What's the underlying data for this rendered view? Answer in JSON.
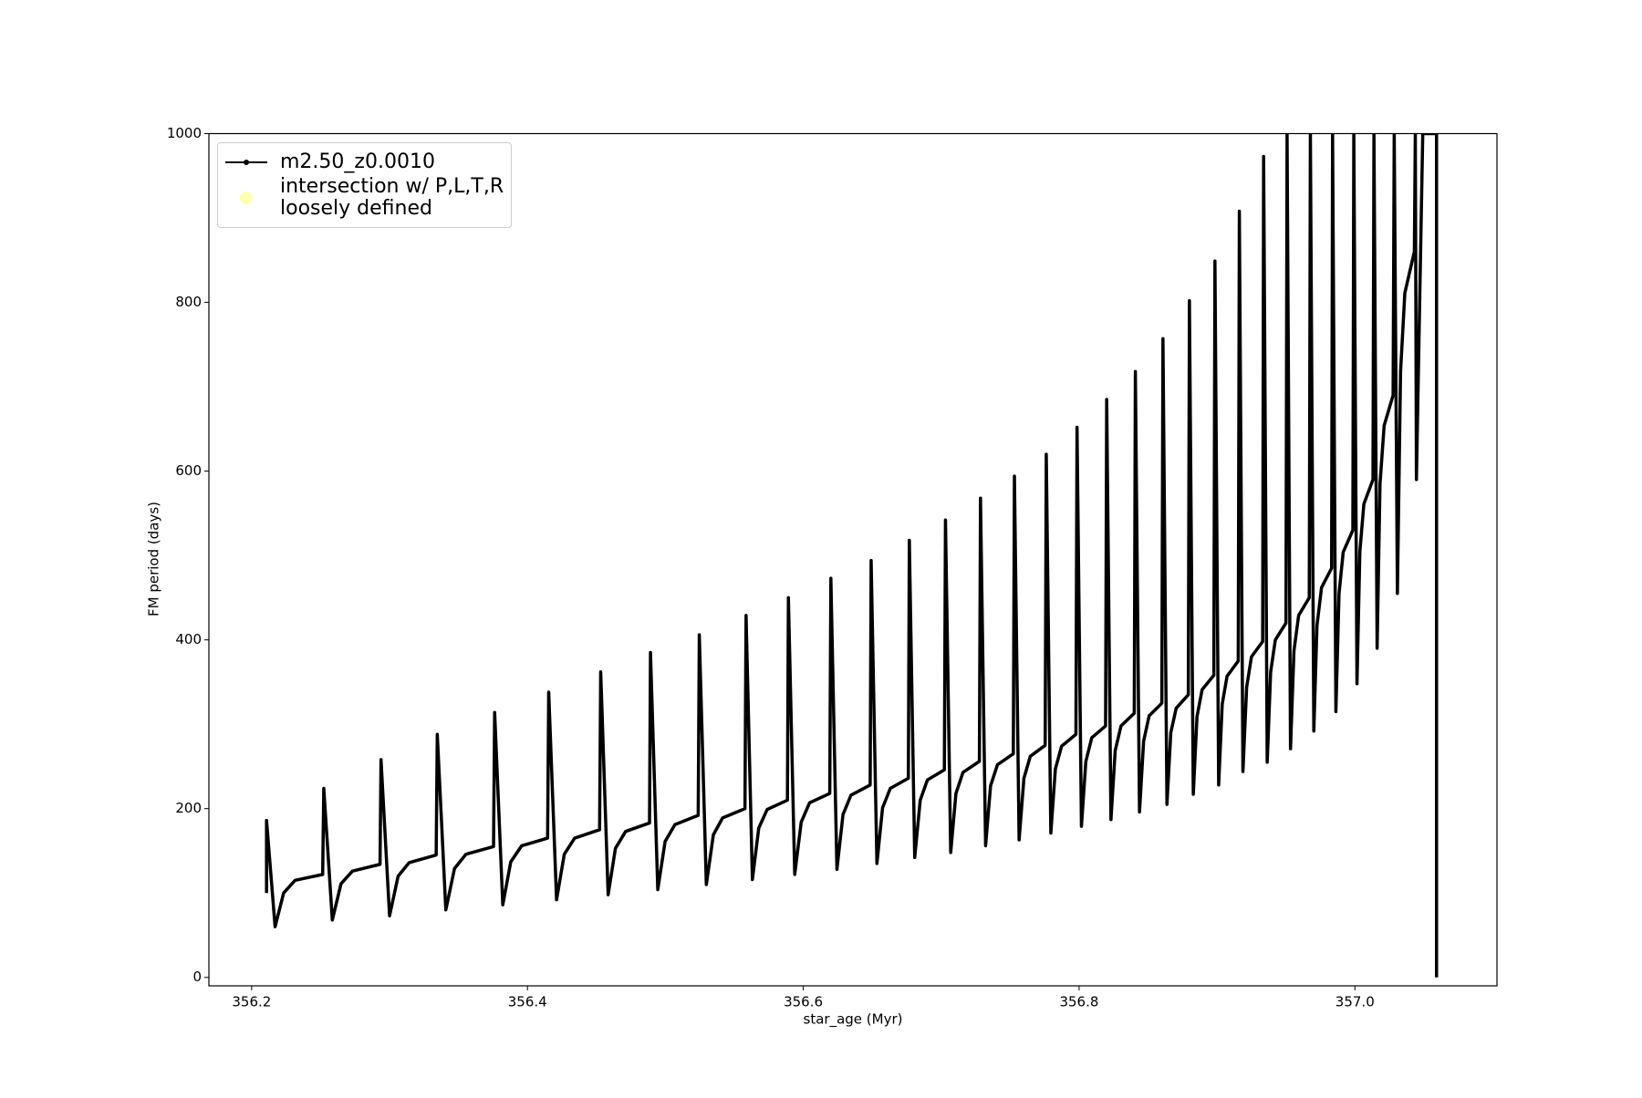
{
  "chart_data": {
    "type": "line",
    "xlabel": "star_age (Myr)",
    "ylabel": "FM period (days)",
    "xlim": [
      356.169,
      357.103
    ],
    "ylim": [
      -10,
      1000
    ],
    "xticks": [
      356.2,
      356.4,
      356.6,
      356.8,
      {
        "value": 357.0,
        "label": "357.0"
      }
    ],
    "yticks": [
      0,
      200,
      400,
      600,
      800,
      1000
    ],
    "legend": "upper left",
    "series": [
      {
        "name": "m2.50_z0.0010",
        "color": "#000000",
        "x": [
          356.2108,
          356.2108,
          356.217,
          356.2232,
          356.2315,
          356.2515,
          356.2523,
          356.2585,
          356.2648,
          356.2731,
          356.2931,
          356.2938,
          356.3,
          356.3062,
          356.3142,
          356.3338,
          356.3346,
          356.3408,
          356.3471,
          356.3554,
          356.3754,
          356.3762,
          356.3821,
          356.3879,
          356.3958,
          356.4146,
          356.4154,
          356.4211,
          356.4267,
          356.4342,
          356.4523,
          356.4531,
          356.4585,
          356.4638,
          356.4712,
          356.4885,
          356.4892,
          356.4945,
          356.4998,
          356.5069,
          356.5238,
          356.5246,
          356.5297,
          356.5348,
          356.5415,
          356.5577,
          356.5585,
          356.5631,
          356.5677,
          356.5738,
          356.5885,
          356.5892,
          356.5938,
          356.5985,
          356.6046,
          356.6192,
          356.62,
          356.6244,
          356.6288,
          356.6346,
          356.6485,
          356.6492,
          356.6534,
          356.6575,
          356.6631,
          356.6762,
          356.6769,
          356.6808,
          356.6848,
          356.69,
          356.7023,
          356.7031,
          356.7069,
          356.7107,
          356.7158,
          356.7277,
          356.7285,
          356.7322,
          356.7358,
          356.7408,
          356.7523,
          356.7531,
          356.7565,
          356.76,
          356.7646,
          356.7754,
          356.7762,
          356.7795,
          356.7828,
          356.7873,
          356.7977,
          356.7985,
          356.8017,
          356.8049,
          356.8092,
          356.8192,
          356.82,
          356.8231,
          356.8262,
          356.8304,
          356.84,
          356.8408,
          356.8438,
          356.8468,
          356.8508,
          356.86,
          356.8608,
          356.8637,
          356.8665,
          356.8704,
          356.8792,
          356.88,
          356.8828,
          356.8855,
          356.8892,
          356.8977,
          356.8985,
          356.9012,
          356.9038,
          356.9073,
          356.9154,
          356.9162,
          356.9188,
          356.9215,
          356.925,
          356.9331,
          356.9338,
          356.9364,
          356.9389,
          356.9423,
          356.95,
          356.9508,
          356.9533,
          356.9558,
          356.9592,
          356.9669,
          356.9677,
          356.9702,
          356.9725,
          356.9758,
          356.9831,
          356.9838,
          356.9862,
          356.9885,
          356.9915,
          356.9985,
          356.9992,
          357.0015,
          357.0036,
          357.0065,
          357.0131,
          357.0138,
          357.0161,
          357.0182,
          357.0212,
          357.0277,
          357.0285,
          357.0308,
          357.0331,
          357.0362,
          357.0431,
          357.0438,
          357.0446,
          357.0492,
          357.0592,
          357.0592
        ],
        "values": [
          100,
          186,
          60,
          100,
          115,
          122,
          224,
          68,
          111,
          126,
          134,
          258,
          73,
          120,
          136,
          145,
          288,
          80,
          129,
          146,
          155,
          314,
          86,
          137,
          156,
          165,
          338,
          92,
          146,
          165,
          175,
          362,
          98,
          153,
          173,
          183,
          385,
          104,
          161,
          181,
          192,
          406,
          110,
          169,
          189,
          200,
          429,
          116,
          177,
          199,
          210,
          450,
          122,
          184,
          207,
          218,
          473,
          128,
          193,
          216,
          228,
          494,
          135,
          201,
          224,
          236,
          518,
          142,
          210,
          234,
          246,
          542,
          148,
          218,
          243,
          256,
          568,
          156,
          227,
          252,
          265,
          594,
          163,
          236,
          262,
          275,
          620,
          171,
          247,
          274,
          288,
          652,
          179,
          256,
          284,
          298,
          685,
          187,
          269,
          298,
          313,
          718,
          196,
          280,
          310,
          325,
          757,
          205,
          290,
          319,
          335,
          802,
          217,
          309,
          341,
          358,
          849,
          228,
          324,
          357,
          375,
          908,
          244,
          344,
          380,
          398,
          973,
          255,
          362,
          400,
          420,
          1000,
          271,
          387,
          429,
          450,
          1000,
          292,
          417,
          462,
          485,
          1000,
          315,
          455,
          504,
          530,
          1000,
          348,
          505,
          561,
          590,
          1000,
          390,
          585,
          654,
          690,
          1000,
          455,
          718,
          811,
          860,
          1000,
          590,
          1000,
          1000,
          0
        ]
      },
      {
        "name": "intersection w/ P,L,T,R\nloosely defined",
        "color": "#ffffb3",
        "x": [],
        "values": []
      }
    ]
  }
}
